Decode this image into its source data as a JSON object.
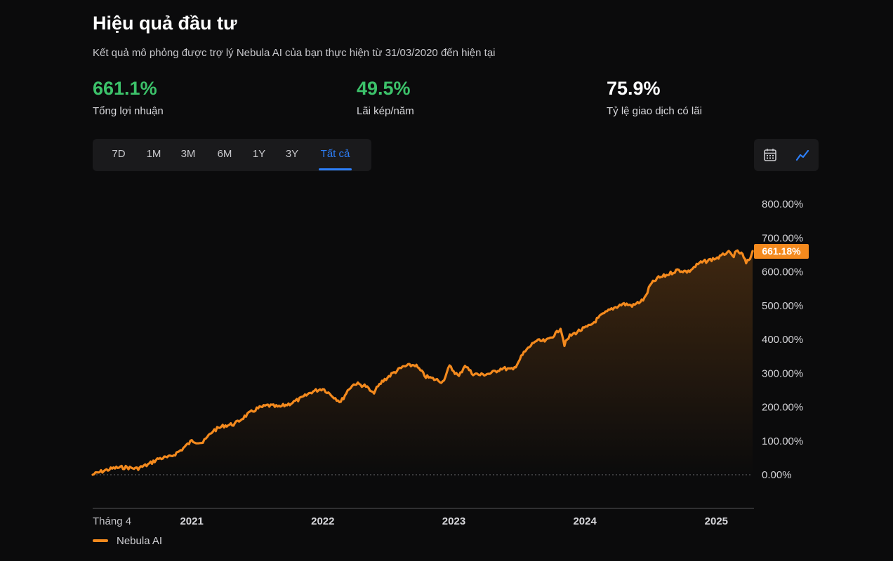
{
  "header": {
    "title": "Hiệu quả đầu tư",
    "subtitle": "Kết quả mô phỏng được trợ lý Nebula AI của bạn thực hiện từ 31/03/2020 đến hiện tại"
  },
  "stats": [
    {
      "value": "661.1%",
      "label": "Tổng lợi nhuận",
      "color": "#3cc26a"
    },
    {
      "value": "49.5%",
      "label": "Lãi kép/năm",
      "color": "#3cc26a"
    },
    {
      "value": "75.9%",
      "label": "Tỷ lệ giao dịch có lãi",
      "color": "#ffffff"
    }
  ],
  "tabs": [
    "7D",
    "1M",
    "3M",
    "6M",
    "1Y",
    "3Y",
    "Tất cả"
  ],
  "active_tab": "Tất cả",
  "tools": [
    {
      "icon": "calendar-icon"
    },
    {
      "icon": "line-chart-icon",
      "active": true
    }
  ],
  "colors": {
    "line": "#f48a1e",
    "accent": "#2d7ff9",
    "background": "#0b0b0c",
    "panel": "#1a1a1c"
  },
  "chart_data": {
    "type": "area",
    "title": "",
    "xlabel": "",
    "ylabel": "",
    "x_range": [
      "2020-03-31",
      "2025-04-12"
    ],
    "ylim": [
      0,
      800
    ],
    "y_ticks": [
      0,
      100,
      200,
      300,
      400,
      500,
      600,
      700,
      800
    ],
    "y_tick_labels": [
      "0.00%",
      "100.00%",
      "200.00%",
      "300.00%",
      "400.00%",
      "500.00%",
      "600.00%",
      "700.00%",
      "800.00%"
    ],
    "x_tick_labels": [
      {
        "label": "Tháng 4",
        "date": "2020-04-01",
        "bold": false
      },
      {
        "label": "2021",
        "date": "2021-01-01",
        "bold": true
      },
      {
        "label": "2022",
        "date": "2022-01-01",
        "bold": true
      },
      {
        "label": "2023",
        "date": "2023-01-01",
        "bold": true
      },
      {
        "label": "2024",
        "date": "2024-01-01",
        "bold": true
      },
      {
        "label": "2025",
        "date": "2025-01-01",
        "bold": true
      }
    ],
    "grid": false,
    "legend_position": "bottom-left",
    "last_value_label": "661.18%",
    "series": [
      {
        "name": "Nebula AI",
        "points": [
          [
            "2020-03-31",
            0
          ],
          [
            "2020-05-01",
            12
          ],
          [
            "2020-06-01",
            20
          ],
          [
            "2020-07-01",
            22
          ],
          [
            "2020-08-01",
            18
          ],
          [
            "2020-09-01",
            30
          ],
          [
            "2020-10-01",
            48
          ],
          [
            "2020-11-01",
            52
          ],
          [
            "2020-12-01",
            72
          ],
          [
            "2021-01-01",
            100
          ],
          [
            "2021-02-01",
            95
          ],
          [
            "2021-03-01",
            130
          ],
          [
            "2021-04-01",
            145
          ],
          [
            "2021-05-01",
            150
          ],
          [
            "2021-06-01",
            175
          ],
          [
            "2021-07-01",
            195
          ],
          [
            "2021-08-01",
            205
          ],
          [
            "2021-09-01",
            200
          ],
          [
            "2021-10-01",
            210
          ],
          [
            "2021-11-01",
            225
          ],
          [
            "2021-12-01",
            245
          ],
          [
            "2022-01-01",
            255
          ],
          [
            "2022-02-01",
            230
          ],
          [
            "2022-02-20",
            215
          ],
          [
            "2022-03-15",
            255
          ],
          [
            "2022-04-01",
            270
          ],
          [
            "2022-05-01",
            262
          ],
          [
            "2022-05-20",
            240
          ],
          [
            "2022-06-15",
            275
          ],
          [
            "2022-07-15",
            300
          ],
          [
            "2022-08-15",
            320
          ],
          [
            "2022-09-15",
            325
          ],
          [
            "2022-10-15",
            290
          ],
          [
            "2022-11-15",
            280
          ],
          [
            "2022-12-01",
            275
          ],
          [
            "2022-12-20",
            320
          ],
          [
            "2023-01-15",
            290
          ],
          [
            "2023-02-01",
            325
          ],
          [
            "2023-02-20",
            300
          ],
          [
            "2023-03-15",
            295
          ],
          [
            "2023-04-15",
            300
          ],
          [
            "2023-05-15",
            315
          ],
          [
            "2023-06-15",
            310
          ],
          [
            "2023-07-15",
            360
          ],
          [
            "2023-08-15",
            395
          ],
          [
            "2023-09-15",
            395
          ],
          [
            "2023-10-15",
            420
          ],
          [
            "2023-10-25",
            435
          ],
          [
            "2023-11-05",
            385
          ],
          [
            "2023-11-20",
            410
          ],
          [
            "2023-12-15",
            425
          ],
          [
            "2024-01-15",
            440
          ],
          [
            "2024-02-15",
            470
          ],
          [
            "2024-03-15",
            490
          ],
          [
            "2024-04-15",
            505
          ],
          [
            "2024-05-15",
            500
          ],
          [
            "2024-06-15",
            520
          ],
          [
            "2024-07-01",
            560
          ],
          [
            "2024-07-20",
            580
          ],
          [
            "2024-08-15",
            590
          ],
          [
            "2024-09-15",
            605
          ],
          [
            "2024-10-15",
            600
          ],
          [
            "2024-11-15",
            625
          ],
          [
            "2024-12-15",
            635
          ],
          [
            "2025-01-15",
            645
          ],
          [
            "2025-02-01",
            660
          ],
          [
            "2025-02-15",
            645
          ],
          [
            "2025-03-01",
            660
          ],
          [
            "2025-03-15",
            650
          ],
          [
            "2025-03-25",
            625
          ],
          [
            "2025-04-05",
            640
          ],
          [
            "2025-04-12",
            661.18
          ]
        ]
      }
    ]
  }
}
